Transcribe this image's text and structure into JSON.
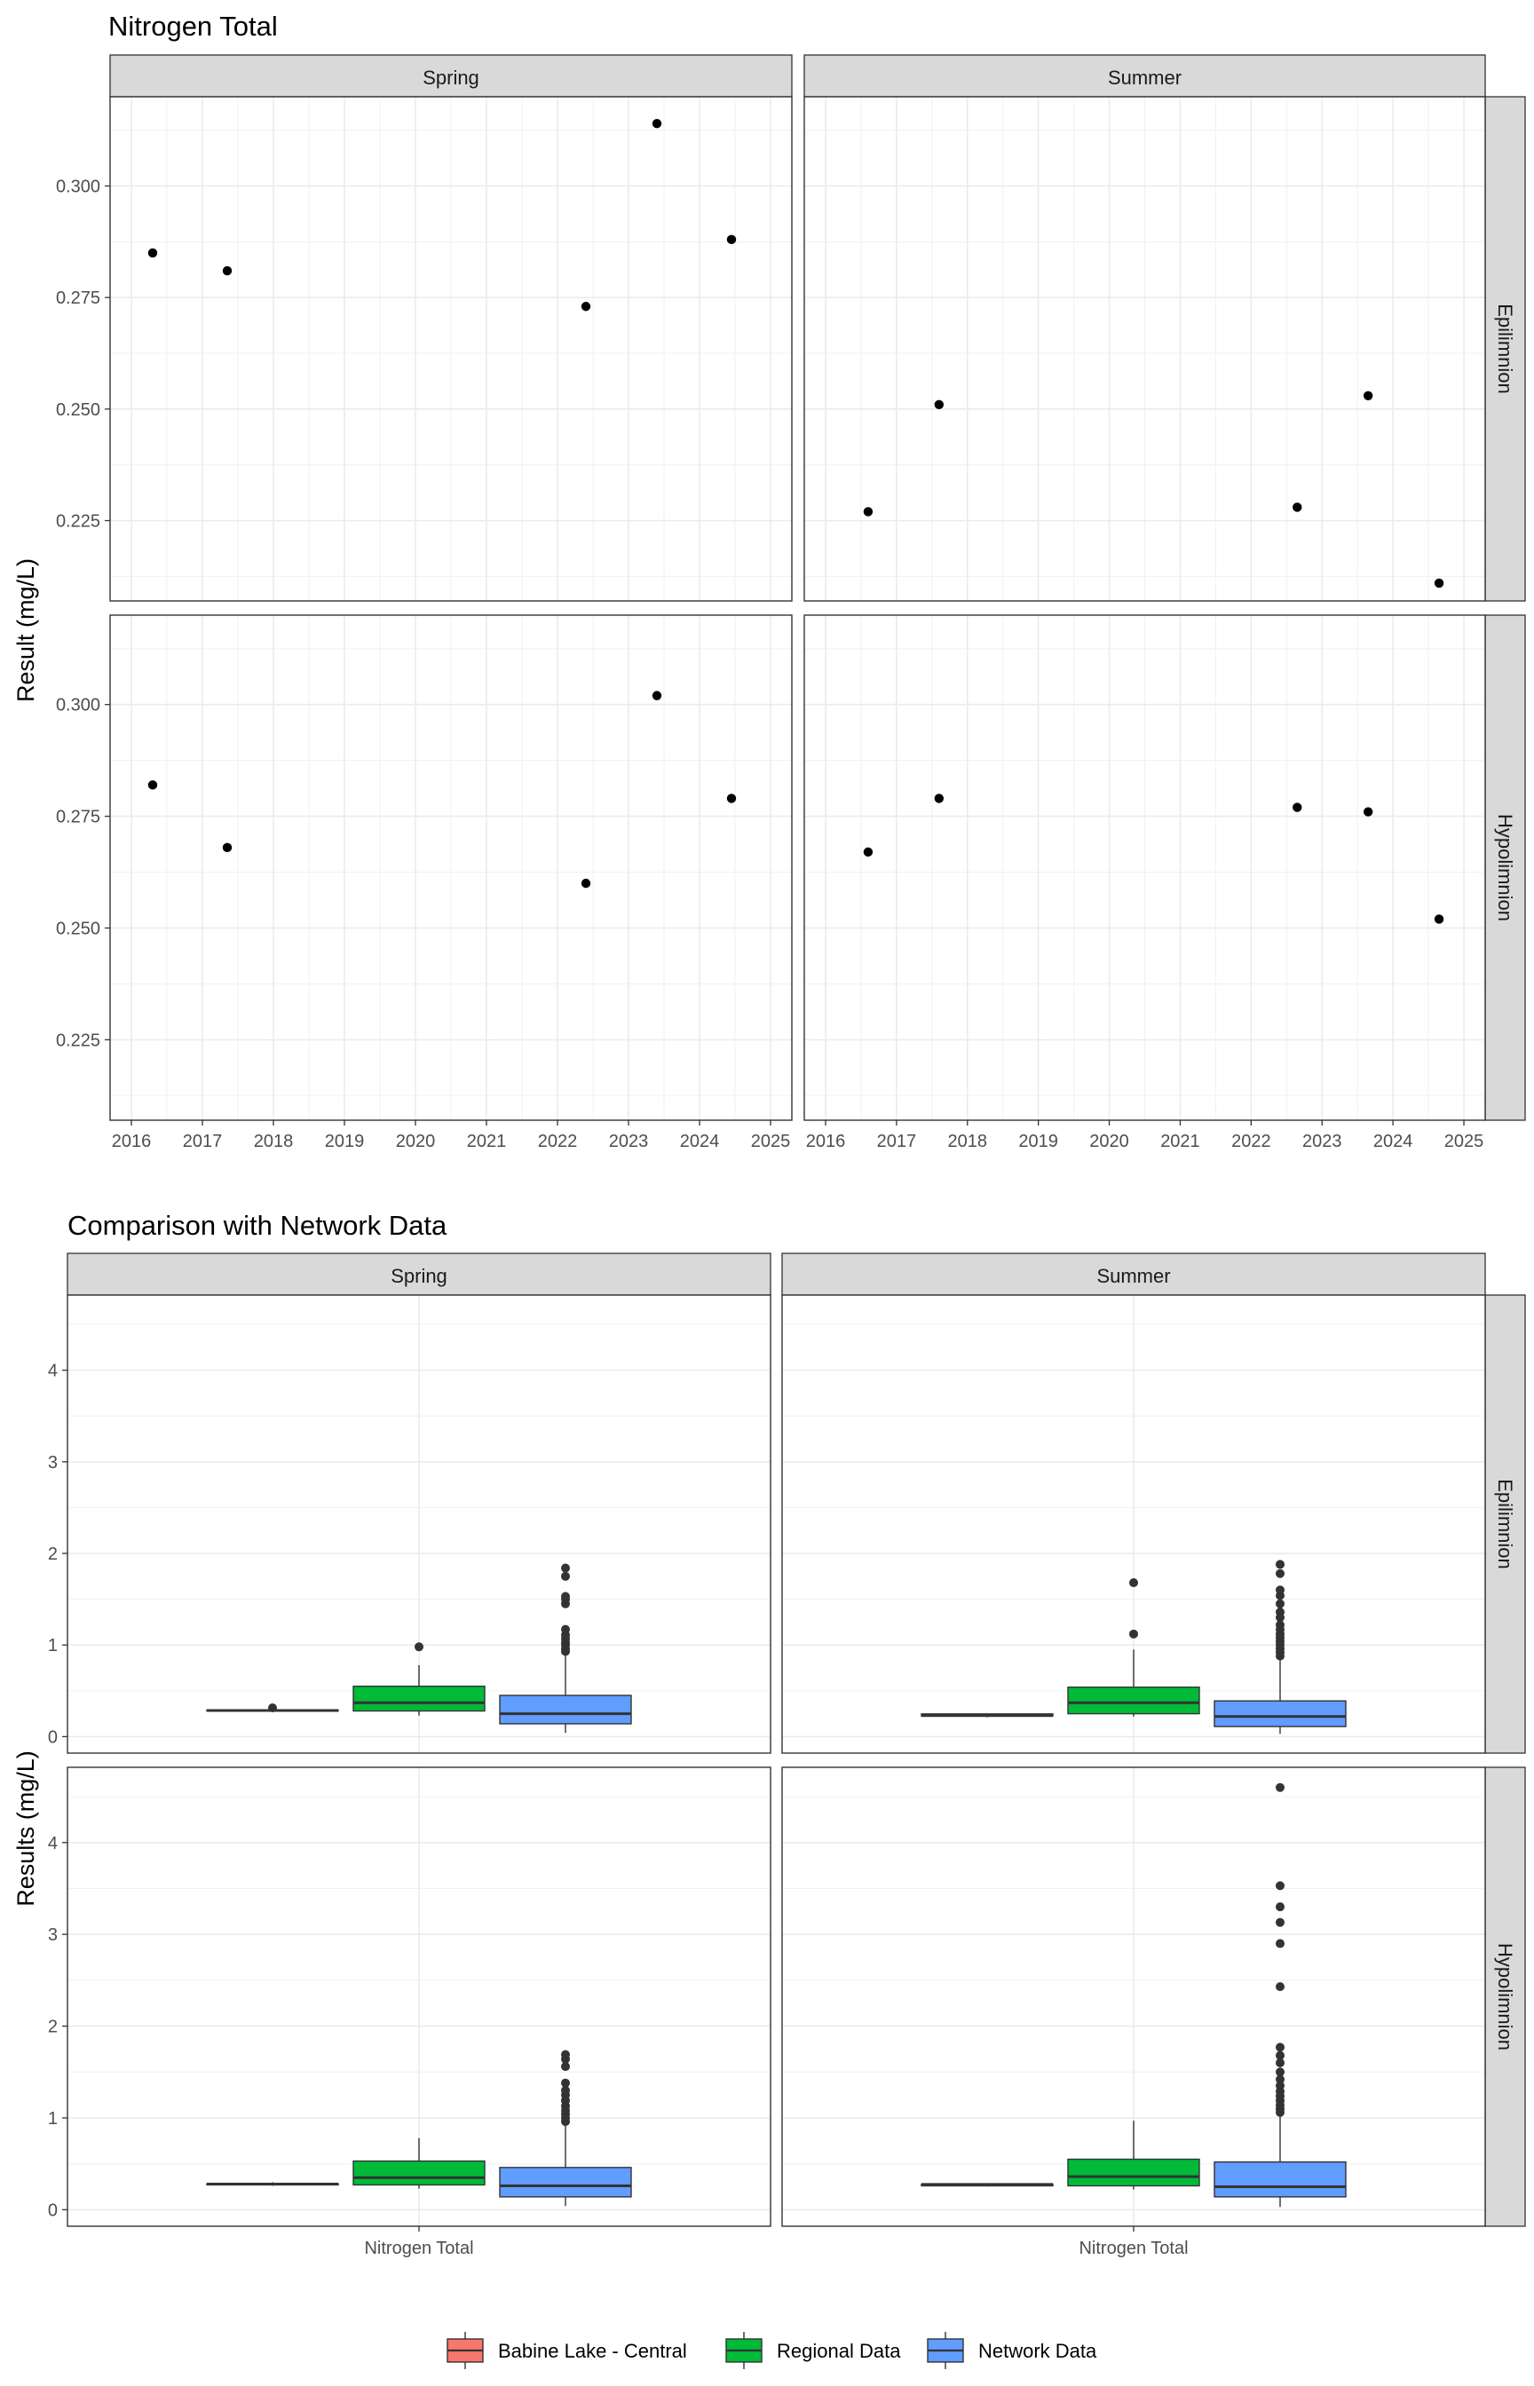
{
  "chart_data": [
    {
      "type": "scatter",
      "title": "Nitrogen Total",
      "ylabel": "Result (mg/L)",
      "xlabel": "",
      "x_ticks": [
        "2016",
        "2017",
        "2018",
        "2019",
        "2020",
        "2021",
        "2022",
        "2023",
        "2024",
        "2025"
      ],
      "x_range": [
        2015.7,
        2025.3
      ],
      "y_ticks": [
        "0.225",
        "0.250",
        "0.275",
        "0.300"
      ],
      "ylim": [
        0.207,
        0.32
      ],
      "grid": true,
      "col_facets": [
        "Spring",
        "Summer"
      ],
      "row_facets": [
        "Epilimnion",
        "Hypolimnion"
      ],
      "panels": [
        {
          "col": "Spring",
          "row": "Epilimnion",
          "points": [
            [
              2016.3,
              0.285
            ],
            [
              2017.35,
              0.281
            ],
            [
              2022.4,
              0.273
            ],
            [
              2023.4,
              0.314
            ],
            [
              2024.45,
              0.288
            ]
          ]
        },
        {
          "col": "Summer",
          "row": "Epilimnion",
          "points": [
            [
              2016.6,
              0.227
            ],
            [
              2017.6,
              0.251
            ],
            [
              2022.65,
              0.228
            ],
            [
              2023.65,
              0.253
            ],
            [
              2024.65,
              0.211
            ]
          ]
        },
        {
          "col": "Spring",
          "row": "Hypolimnion",
          "points": [
            [
              2016.3,
              0.282
            ],
            [
              2017.35,
              0.268
            ],
            [
              2022.4,
              0.26
            ],
            [
              2023.4,
              0.302
            ],
            [
              2024.45,
              0.279
            ]
          ]
        },
        {
          "col": "Summer",
          "row": "Hypolimnion",
          "points": [
            [
              2016.6,
              0.267
            ],
            [
              2017.6,
              0.279
            ],
            [
              2022.65,
              0.277
            ],
            [
              2023.65,
              0.276
            ],
            [
              2024.65,
              0.252
            ]
          ]
        }
      ]
    },
    {
      "type": "box",
      "title": "Comparison with Network Data",
      "ylabel": "Results (mg/L)",
      "categories": [
        "Nitrogen Total"
      ],
      "y_ticks": [
        "0",
        "1",
        "2",
        "3",
        "4"
      ],
      "ylim": [
        -0.18,
        4.82
      ],
      "grid": true,
      "col_facets": [
        "Spring",
        "Summer"
      ],
      "row_facets": [
        "Epilimnion",
        "Hypolimnion"
      ],
      "legend": {
        "position": "bottom",
        "items": [
          {
            "name": "Babine Lake - Central",
            "color": "#F8766D"
          },
          {
            "name": "Regional Data",
            "color": "#00BA38"
          },
          {
            "name": "Network Data",
            "color": "#619CFF"
          }
        ]
      },
      "panels": [
        {
          "col": "Spring",
          "row": "Epilimnion",
          "boxes": [
            {
              "group": "Babine Lake - Central",
              "min": 0.27,
              "q1": 0.28,
              "median": 0.285,
              "q3": 0.29,
              "max": 0.3,
              "outliers": [
                0.314
              ]
            },
            {
              "group": "Regional Data",
              "min": 0.23,
              "q1": 0.28,
              "median": 0.37,
              "q3": 0.55,
              "max": 0.78,
              "outliers": [
                0.98
              ]
            },
            {
              "group": "Network Data",
              "min": 0.04,
              "q1": 0.14,
              "median": 0.25,
              "q3": 0.45,
              "max": 0.9,
              "outliers": [
                0.93,
                0.96,
                1.0,
                1.03,
                1.07,
                1.11,
                1.17,
                1.45,
                1.5,
                1.53,
                1.75,
                1.84
              ]
            }
          ]
        },
        {
          "col": "Summer",
          "row": "Epilimnion",
          "boxes": [
            {
              "group": "Babine Lake - Central",
              "min": 0.211,
              "q1": 0.225,
              "median": 0.23,
              "q3": 0.248,
              "max": 0.253,
              "outliers": []
            },
            {
              "group": "Regional Data",
              "min": 0.22,
              "q1": 0.25,
              "median": 0.37,
              "q3": 0.54,
              "max": 0.95,
              "outliers": [
                1.12,
                1.68
              ]
            },
            {
              "group": "Network Data",
              "min": 0.03,
              "q1": 0.11,
              "median": 0.22,
              "q3": 0.39,
              "max": 0.85,
              "outliers": [
                0.88,
                0.92,
                0.96,
                1.0,
                1.04,
                1.08,
                1.12,
                1.17,
                1.22,
                1.3,
                1.36,
                1.45,
                1.54,
                1.6,
                1.78,
                1.88
              ]
            }
          ]
        },
        {
          "col": "Spring",
          "row": "Hypolimnion",
          "boxes": [
            {
              "group": "Babine Lake - Central",
              "min": 0.26,
              "q1": 0.27,
              "median": 0.279,
              "q3": 0.282,
              "max": 0.3,
              "outliers": []
            },
            {
              "group": "Regional Data",
              "min": 0.23,
              "q1": 0.27,
              "median": 0.35,
              "q3": 0.53,
              "max": 0.78,
              "outliers": []
            },
            {
              "group": "Network Data",
              "min": 0.04,
              "q1": 0.14,
              "median": 0.26,
              "q3": 0.46,
              "max": 0.93,
              "outliers": [
                0.96,
                1.0,
                1.04,
                1.08,
                1.13,
                1.19,
                1.25,
                1.3,
                1.38,
                1.56,
                1.64,
                1.69
              ]
            }
          ]
        },
        {
          "col": "Summer",
          "row": "Hypolimnion",
          "boxes": [
            {
              "group": "Babine Lake - Central",
              "min": 0.252,
              "q1": 0.26,
              "median": 0.276,
              "q3": 0.277,
              "max": 0.279,
              "outliers": []
            },
            {
              "group": "Regional Data",
              "min": 0.22,
              "q1": 0.26,
              "median": 0.36,
              "q3": 0.55,
              "max": 0.97,
              "outliers": []
            },
            {
              "group": "Network Data",
              "min": 0.03,
              "q1": 0.14,
              "median": 0.25,
              "q3": 0.52,
              "max": 1.03,
              "outliers": [
                1.06,
                1.1,
                1.14,
                1.19,
                1.24,
                1.29,
                1.35,
                1.42,
                1.5,
                1.6,
                1.68,
                1.77,
                2.43,
                2.9,
                3.13,
                3.3,
                3.53,
                4.6
              ]
            }
          ]
        }
      ]
    }
  ]
}
